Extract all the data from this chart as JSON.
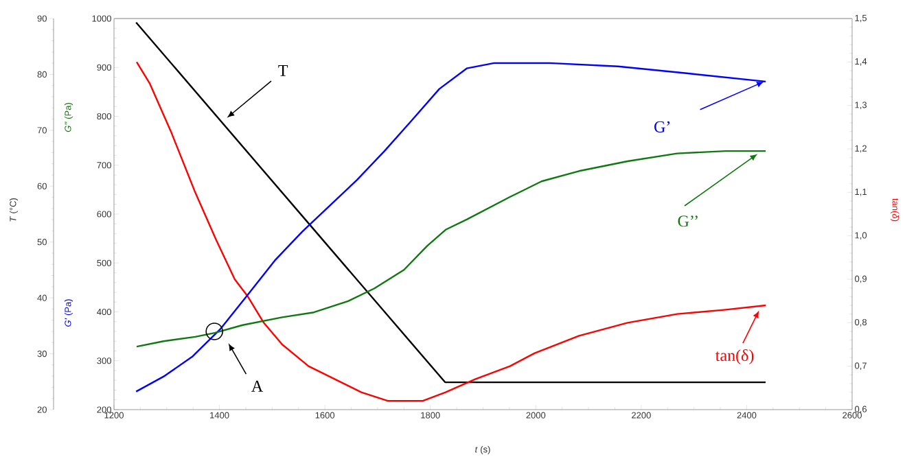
{
  "chart_data": {
    "type": "line",
    "xlabel": "*t* (s)",
    "ylabel": "*G'* (Pa)",
    "y2label": "tan(*δ*)",
    "y3label": "*T* (°C)",
    "xlim": [
      1200,
      2600
    ],
    "xticks": [
      1200,
      1400,
      1600,
      1800,
      2000,
      2200,
      2400,
      2600
    ],
    "ylim": [
      200,
      1000
    ],
    "yticks": [
      200,
      300,
      400,
      500,
      600,
      700,
      800,
      900,
      1000
    ],
    "y2lim": [
      0.6,
      1.5
    ],
    "y2ticks": [
      {
        "value": 0.6,
        "label": "0,6"
      },
      {
        "value": 0.7,
        "label": "0,7"
      },
      {
        "value": 0.8,
        "label": "0,8"
      },
      {
        "value": 0.9,
        "label": "0,9"
      },
      {
        "value": 1.0,
        "label": "1,0"
      },
      {
        "value": 1.1,
        "label": "1,1"
      },
      {
        "value": 1.2,
        "label": "1,2"
      },
      {
        "value": 1.3,
        "label": "1,3"
      },
      {
        "value": 1.4,
        "label": "1,4"
      },
      {
        "value": 1.5,
        "label": "1,5"
      }
    ],
    "y3lim": [
      20,
      90
    ],
    "y3ticks": [
      20,
      30,
      40,
      50,
      60,
      70,
      80,
      90
    ],
    "series": [
      {
        "color": "#0000ff",
        "x": [
          1242,
          1296,
          1348,
          1401,
          1453,
          1505,
          1557,
          1609,
          1661,
          1713,
          1765,
          1817,
          1869,
          1921,
          2026,
          2156,
          2286,
          2436
        ],
        "values": [
          237,
          269,
          308,
          364,
          434,
          505,
          564,
          617,
          670,
          729,
          792,
          856,
          898,
          909,
          909,
          902,
          888,
          871
        ]
      },
      {
        "color": "#107810",
        "x": [
          1243,
          1294,
          1354,
          1391,
          1444,
          1519,
          1579,
          1644,
          1694,
          1750,
          1794,
          1829,
          1869,
          1951,
          2011,
          2082,
          2174,
          2268,
          2360,
          2436
        ],
        "values": [
          329,
          340,
          349,
          357,
          373,
          389,
          399,
          422,
          448,
          486,
          535,
          568,
          589,
          635,
          667,
          688,
          708,
          724,
          729,
          729
        ]
      },
      {
        "color": "#000000",
        "axis": "y3",
        "x": [
          1242,
          1574,
          1828,
          2436
        ],
        "values": [
          89.3,
          52.8,
          24.9,
          24.9
        ]
      },
      {
        "color": "#ff0000",
        "axis": "y2",
        "x": [
          1243,
          1268,
          1308,
          1354,
          1394,
          1429,
          1454,
          1484,
          1519,
          1569,
          1619,
          1669,
          1720,
          1750,
          1785,
          1829,
          1885,
          1951,
          1998,
          2082,
          2174,
          2268,
          2360,
          2436
        ],
        "values": [
          1.4,
          1.35,
          1.24,
          1.1,
          0.99,
          0.9,
          0.86,
          0.8,
          0.75,
          0.7,
          0.67,
          0.64,
          0.62,
          0.62,
          0.62,
          0.64,
          0.67,
          0.7,
          0.73,
          0.77,
          0.8,
          0.82,
          0.83,
          0.84
        ]
      }
    ],
    "annotations": [
      "T",
      "A",
      "G’",
      "G’’",
      "tan(δ)",
      "*G''* (Pa)"
    ]
  }
}
